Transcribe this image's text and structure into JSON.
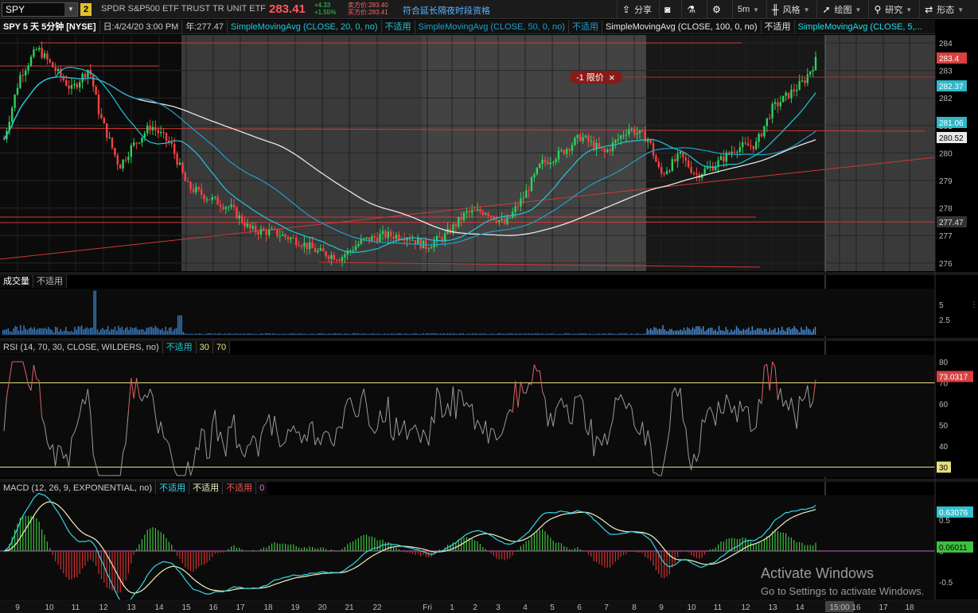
{
  "toolbar": {
    "symbol": "SPY",
    "link_group": "2",
    "description": "SPDR S&P500 ETF TRUST TR UNIT ETF",
    "last": "283.41",
    "net_change": "+4.33",
    "pct_change": "+1.55%",
    "bid": "卖方价:283.40",
    "ask": "买方价:283.41",
    "extended_hours": "符合延长隔夜时段资格",
    "share_label": "分享",
    "timeframe": "5m",
    "style_label": "风格",
    "drawings_label": "绘图",
    "studies_label": "研究",
    "patterns_label": "形态"
  },
  "studies_bar": {
    "title": "SPY 5 天 5分钟 [NYSE]",
    "date": "日:4/24/20 3:00 PM",
    "year_close": "年:277.47",
    "sma1": "SimpleMovingAvg (CLOSE, 20, 0, no)",
    "na1": "不适用",
    "sma2": "SimpleMovingAvg (CLOSE, 50, 0, no)",
    "na2": "不适用",
    "sma3": "SimpleMovingAvg (CLOSE, 100, 0, no)",
    "na3": "不适用",
    "sma4": "SimpleMovingAvg (CLOSE, 5,..."
  },
  "order": {
    "label": "-1 限价",
    "close": "×"
  },
  "price_axis": {
    "ticks": [
      "284",
      "283",
      "282",
      "281",
      "280",
      "279",
      "278",
      "277",
      "276"
    ],
    "labels": [
      {
        "text": "283.4",
        "bg": "#d94040",
        "fg": "#ffffff"
      },
      {
        "text": "282.37",
        "bg": "#2fb8c8",
        "fg": "#ffffff"
      },
      {
        "text": "281.06",
        "bg": "#2fb8c8",
        "fg": "#ffffff"
      },
      {
        "text": "280.52",
        "bg": "#e8e8e8",
        "fg": "#000000"
      },
      {
        "text": "277.47",
        "bg": "#333333",
        "fg": "#dddddd"
      }
    ]
  },
  "volume": {
    "title": "成交量",
    "na": "不适用",
    "ticks": [
      "5",
      "2.5"
    ]
  },
  "rsi": {
    "title": "RSI (14, 70, 30, CLOSE, WILDERS, no)",
    "na": "不适用",
    "ob": "30",
    "os": "70",
    "ticks": [
      "80",
      "70",
      "60",
      "50",
      "40"
    ],
    "value": "73.0317",
    "low_label": "30"
  },
  "macd": {
    "title": "MACD (12, 26, 9, EXPONENTIAL, no)",
    "na1": "不适用",
    "na2": "不适用",
    "na3": "不适用",
    "zero": "0",
    "ticks": [
      "0.5",
      "0",
      "-0.5"
    ],
    "value": "0.63076",
    "diff": "0.06011"
  },
  "time_axis": {
    "ticks": [
      "9",
      "10",
      "11",
      "12",
      "13",
      "14",
      "15",
      "16",
      "17",
      "18",
      "19",
      "20",
      "21",
      "22",
      "Fri",
      "1",
      "2",
      "3",
      "4",
      "5",
      "6",
      "7",
      "8",
      "9",
      "10",
      "11",
      "12",
      "13",
      "14",
      "15:00",
      "16",
      "17",
      "18"
    ]
  },
  "watermark": {
    "line1": "Activate Windows",
    "line2": "Go to Settings to activate Windows."
  },
  "colors": {
    "up": "#2fd060",
    "down": "#ff4040",
    "sma20": "#1ec8d8",
    "sma50": "#1ea0c8",
    "sma100": "#e8e8e8",
    "sma5": "#20e0e8",
    "rsi_ob": "#e8e080",
    "macd_fast": "#30d8e8",
    "macd_slow": "#f0f0c0"
  }
}
